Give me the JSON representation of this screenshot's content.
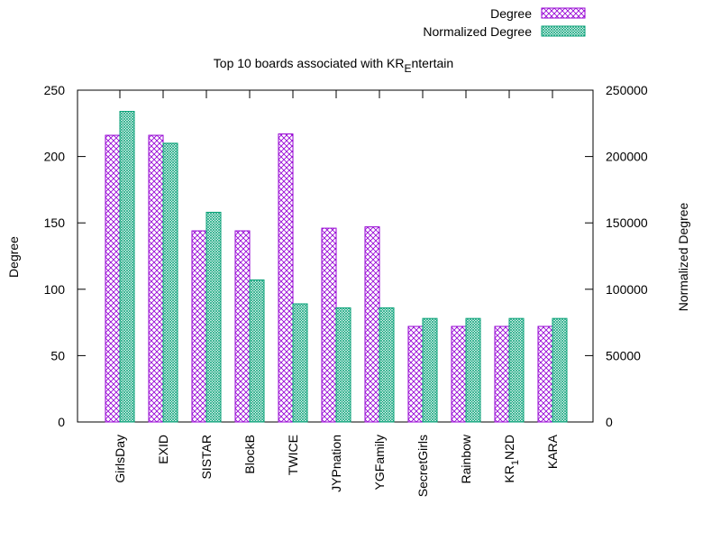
{
  "chart_data": {
    "type": "bar",
    "title": {
      "main": "Top 10 boards associated with KR",
      "subscript": "E",
      "rest": "ntertain"
    },
    "ylabel": "Degree",
    "y2label": "Normalized Degree",
    "ylim": [
      0,
      250
    ],
    "y2lim": [
      0,
      250000
    ],
    "yticks": [
      "0",
      "50",
      "100",
      "150",
      "200",
      "250"
    ],
    "y2ticks": [
      "0",
      "50000",
      "100000",
      "150000",
      "200000",
      "250000"
    ],
    "categories": [
      "GirlsDay",
      "EXID",
      "SISTAR",
      "BlockB",
      "TWICE",
      "JYPnation",
      "YGFamily",
      "SecretGirls",
      "Rainbow",
      "KR1N2D",
      "KARA"
    ],
    "category_display": [
      {
        "main": "GirlsDay"
      },
      {
        "main": "EXID"
      },
      {
        "main": "SISTAR"
      },
      {
        "main": "BlockB"
      },
      {
        "main": "TWICE"
      },
      {
        "main": "JYPnation"
      },
      {
        "main": "YGFamily"
      },
      {
        "main": "SecretGirls"
      },
      {
        "main": "Rainbow"
      },
      {
        "main": "KR",
        "sub": "1",
        "rest": "N2D"
      },
      {
        "main": "KARA"
      }
    ],
    "series": [
      {
        "name": "Degree",
        "axis": "left",
        "color": "#9400d3",
        "values": [
          216,
          216,
          144,
          144,
          217,
          146,
          147,
          72,
          72,
          72,
          72
        ]
      },
      {
        "name": "Normalized Degree",
        "axis": "right",
        "color": "#009e73",
        "values": [
          234000,
          210000,
          158000,
          107000,
          89000,
          86000,
          86000,
          78000,
          78000,
          78000,
          78000
        ]
      }
    ],
    "legend_position": "top-right",
    "grid": false
  }
}
